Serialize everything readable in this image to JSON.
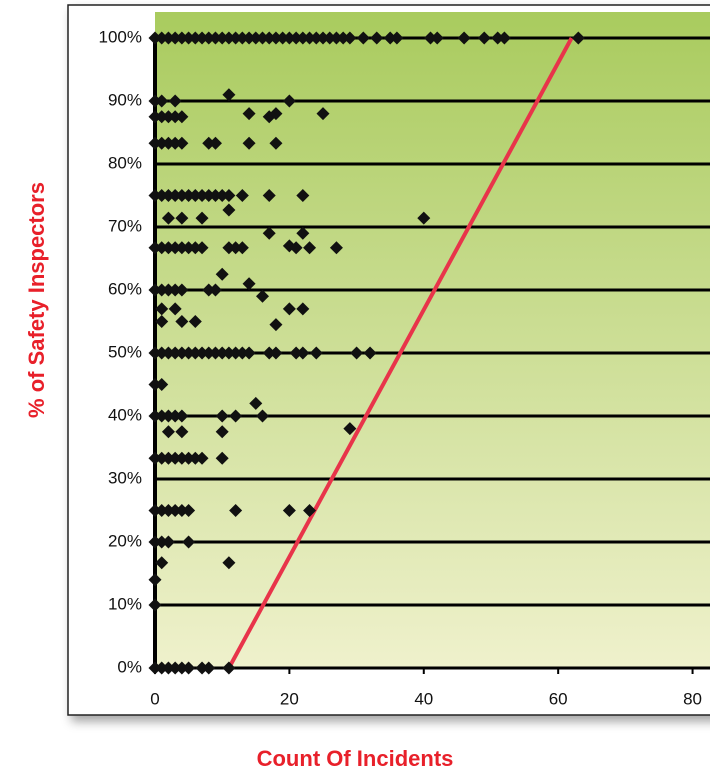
{
  "chart_data": {
    "type": "scatter",
    "x_label": "Count Of Incidents",
    "y_label": "% of Safety Inspectors",
    "xlim": [
      0,
      82
    ],
    "ylim": [
      0,
      100
    ],
    "xticks": [
      0,
      20,
      40,
      60,
      80
    ],
    "yticks": [
      {
        "value": 0,
        "label": "0%"
      },
      {
        "value": 10,
        "label": "10%"
      },
      {
        "value": 20,
        "label": "20%"
      },
      {
        "value": 30,
        "label": "30%"
      },
      {
        "value": 40,
        "label": "40%"
      },
      {
        "value": 50,
        "label": "50%"
      },
      {
        "value": 60,
        "label": "60%"
      },
      {
        "value": 70,
        "label": "70%"
      },
      {
        "value": 80,
        "label": "80%"
      },
      {
        "value": 90,
        "label": "90%"
      },
      {
        "value": 100,
        "label": "100%"
      }
    ],
    "grid": true,
    "color": "#111111",
    "trend_line": {
      "x": [
        11,
        62
      ],
      "y": [
        0,
        100
      ],
      "color": "#e8344a"
    },
    "points": [
      [
        0,
        100
      ],
      [
        1,
        100
      ],
      [
        2,
        100
      ],
      [
        3,
        100
      ],
      [
        4,
        100
      ],
      [
        5,
        100
      ],
      [
        6,
        100
      ],
      [
        7,
        100
      ],
      [
        8,
        100
      ],
      [
        9,
        100
      ],
      [
        10,
        100
      ],
      [
        11,
        100
      ],
      [
        12,
        100
      ],
      [
        13,
        100
      ],
      [
        14,
        100
      ],
      [
        15,
        100
      ],
      [
        16,
        100
      ],
      [
        17,
        100
      ],
      [
        18,
        100
      ],
      [
        19,
        100
      ],
      [
        20,
        100
      ],
      [
        21,
        100
      ],
      [
        22,
        100
      ],
      [
        23,
        100
      ],
      [
        24,
        100
      ],
      [
        25,
        100
      ],
      [
        26,
        100
      ],
      [
        27,
        100
      ],
      [
        28,
        100
      ],
      [
        29,
        100
      ],
      [
        31,
        100
      ],
      [
        33,
        100
      ],
      [
        35,
        100
      ],
      [
        36,
        100
      ],
      [
        41,
        100
      ],
      [
        42,
        100
      ],
      [
        46,
        100
      ],
      [
        49,
        100
      ],
      [
        51,
        100
      ],
      [
        52,
        100
      ],
      [
        63,
        100
      ],
      [
        0,
        90
      ],
      [
        1,
        90
      ],
      [
        3,
        90
      ],
      [
        11,
        91
      ],
      [
        20,
        90
      ],
      [
        0,
        87.5
      ],
      [
        1,
        87.5
      ],
      [
        2,
        87.5
      ],
      [
        3,
        87.5
      ],
      [
        4,
        87.5
      ],
      [
        14,
        88
      ],
      [
        17,
        87.5
      ],
      [
        18,
        88
      ],
      [
        25,
        88
      ],
      [
        0,
        83.3
      ],
      [
        1,
        83.3
      ],
      [
        2,
        83.3
      ],
      [
        3,
        83.3
      ],
      [
        4,
        83.3
      ],
      [
        8,
        83.3
      ],
      [
        9,
        83.3
      ],
      [
        14,
        83.3
      ],
      [
        18,
        83.3
      ],
      [
        0,
        75
      ],
      [
        1,
        75
      ],
      [
        2,
        75
      ],
      [
        3,
        75
      ],
      [
        4,
        75
      ],
      [
        5,
        75
      ],
      [
        6,
        75
      ],
      [
        7,
        75
      ],
      [
        8,
        75
      ],
      [
        9,
        75
      ],
      [
        10,
        75
      ],
      [
        11,
        75
      ],
      [
        13,
        75
      ],
      [
        17,
        75
      ],
      [
        22,
        75
      ],
      [
        2,
        71.4
      ],
      [
        4,
        71.4
      ],
      [
        7,
        71.4
      ],
      [
        40,
        71.4
      ],
      [
        11,
        72.7
      ],
      [
        17,
        69
      ],
      [
        22,
        69
      ],
      [
        0,
        66.7
      ],
      [
        1,
        66.7
      ],
      [
        2,
        66.7
      ],
      [
        3,
        66.7
      ],
      [
        4,
        66.7
      ],
      [
        5,
        66.7
      ],
      [
        6,
        66.7
      ],
      [
        7,
        66.7
      ],
      [
        11,
        66.7
      ],
      [
        12,
        66.7
      ],
      [
        13,
        66.7
      ],
      [
        20,
        67
      ],
      [
        21,
        66.7
      ],
      [
        23,
        66.7
      ],
      [
        27,
        66.7
      ],
      [
        10,
        62.5
      ],
      [
        14,
        61
      ],
      [
        0,
        60
      ],
      [
        1,
        60
      ],
      [
        2,
        60
      ],
      [
        3,
        60
      ],
      [
        4,
        60
      ],
      [
        8,
        60
      ],
      [
        9,
        60
      ],
      [
        16,
        59
      ],
      [
        1,
        57
      ],
      [
        3,
        57
      ],
      [
        20,
        57
      ],
      [
        22,
        57
      ],
      [
        1,
        55
      ],
      [
        4,
        55
      ],
      [
        6,
        55
      ],
      [
        18,
        54.5
      ],
      [
        0,
        50
      ],
      [
        1,
        50
      ],
      [
        2,
        50
      ],
      [
        3,
        50
      ],
      [
        4,
        50
      ],
      [
        5,
        50
      ],
      [
        6,
        50
      ],
      [
        7,
        50
      ],
      [
        8,
        50
      ],
      [
        9,
        50
      ],
      [
        10,
        50
      ],
      [
        11,
        50
      ],
      [
        12,
        50
      ],
      [
        13,
        50
      ],
      [
        14,
        50
      ],
      [
        17,
        50
      ],
      [
        18,
        50
      ],
      [
        21,
        50
      ],
      [
        22,
        50
      ],
      [
        24,
        50
      ],
      [
        30,
        50
      ],
      [
        32,
        50
      ],
      [
        0,
        45
      ],
      [
        1,
        45
      ],
      [
        15,
        42
      ],
      [
        0,
        40
      ],
      [
        1,
        40
      ],
      [
        2,
        40
      ],
      [
        3,
        40
      ],
      [
        4,
        40
      ],
      [
        10,
        40
      ],
      [
        12,
        40
      ],
      [
        16,
        40
      ],
      [
        2,
        37.5
      ],
      [
        4,
        37.5
      ],
      [
        10,
        37.5
      ],
      [
        29,
        38
      ],
      [
        0,
        33.3
      ],
      [
        1,
        33.3
      ],
      [
        2,
        33.3
      ],
      [
        3,
        33.3
      ],
      [
        4,
        33.3
      ],
      [
        5,
        33.3
      ],
      [
        6,
        33.3
      ],
      [
        7,
        33.3
      ],
      [
        10,
        33.3
      ],
      [
        0,
        25
      ],
      [
        1,
        25
      ],
      [
        2,
        25
      ],
      [
        3,
        25
      ],
      [
        4,
        25
      ],
      [
        5,
        25
      ],
      [
        12,
        25
      ],
      [
        20,
        25
      ],
      [
        23,
        25
      ],
      [
        0,
        20
      ],
      [
        1,
        20
      ],
      [
        2,
        20
      ],
      [
        5,
        20
      ],
      [
        1,
        16.7
      ],
      [
        11,
        16.7
      ],
      [
        0,
        14
      ],
      [
        0,
        10
      ],
      [
        0,
        0
      ],
      [
        1,
        0
      ],
      [
        2,
        0
      ],
      [
        3,
        0
      ],
      [
        4,
        0
      ],
      [
        5,
        0
      ],
      [
        7,
        0
      ],
      [
        8,
        0
      ],
      [
        11,
        0
      ]
    ]
  }
}
